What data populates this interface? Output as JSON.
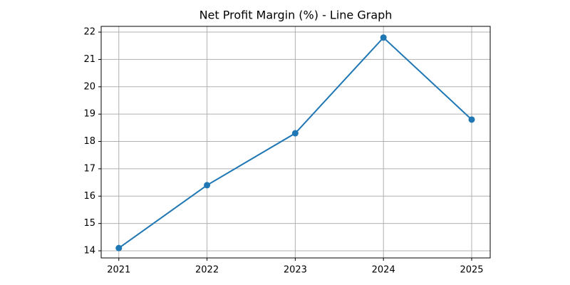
{
  "chart_data": {
    "type": "line",
    "title": "Net Profit Margin (%) - Line Graph",
    "x": [
      2021,
      2022,
      2023,
      2024,
      2025
    ],
    "series": [
      {
        "name": "Net Profit Margin",
        "color": "#1f77b4",
        "values": [
          14.1,
          16.4,
          18.3,
          21.8,
          18.8
        ]
      }
    ],
    "xlim": [
      2020.8,
      2025.21
    ],
    "xticks": [
      2021,
      2022,
      2023,
      2024,
      2025
    ],
    "ylim": [
      13.74,
      22.21
    ],
    "yticks": [
      14,
      15,
      16,
      17,
      18,
      19,
      20,
      21,
      22
    ],
    "grid": true,
    "marker": true
  }
}
